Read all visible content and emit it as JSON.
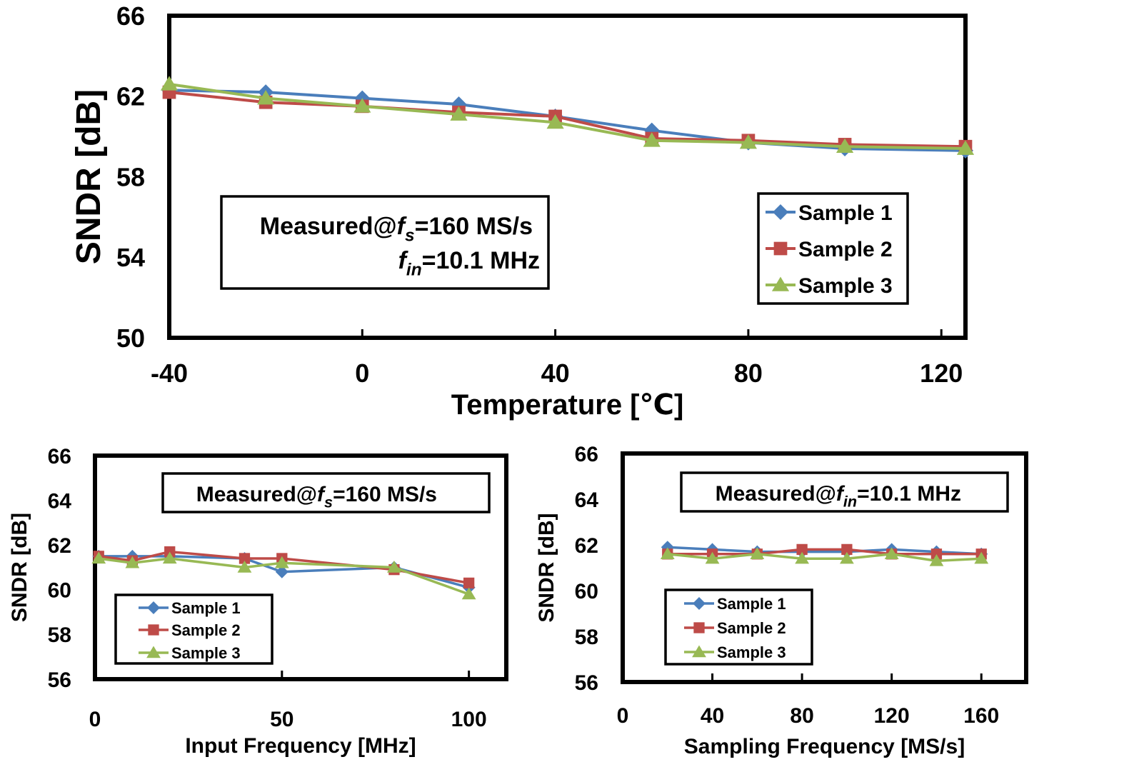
{
  "colors": {
    "sample1": "#4A7EBB",
    "sample2": "#BE4B48",
    "sample3": "#98B954"
  },
  "chart_data": [
    {
      "type": "line",
      "xlabel": "Temperature [℃]",
      "ylabel": "SNDR [dB]",
      "xlim": [
        -40,
        125
      ],
      "ylim": [
        50,
        66
      ],
      "xticks": [
        "-40",
        "0",
        "40",
        "80",
        "120"
      ],
      "yticks": [
        "50",
        "54",
        "58",
        "62",
        "66"
      ],
      "annotation": {
        "prefix": "Measured@",
        "line1_var": "f",
        "line1_sub": "s",
        "line1_rest": "=160 MS/s",
        "line2_var": "f",
        "line2_sub": "in",
        "line2_rest": "=10.1 MHz"
      },
      "legend_position": "bottom-right",
      "x": [
        -40,
        -20,
        0,
        20,
        40,
        60,
        80,
        100,
        125
      ],
      "series": [
        {
          "name": "Sample 1",
          "values": [
            62.3,
            62.2,
            61.9,
            61.6,
            61.0,
            60.3,
            59.7,
            59.4,
            59.3
          ]
        },
        {
          "name": "Sample 2",
          "values": [
            62.2,
            61.7,
            61.5,
            61.2,
            61.0,
            59.9,
            59.8,
            59.6,
            59.5
          ]
        },
        {
          "name": "Sample 3",
          "values": [
            62.6,
            61.9,
            61.5,
            61.1,
            60.7,
            59.8,
            59.7,
            59.5,
            59.4
          ]
        }
      ]
    },
    {
      "type": "line",
      "xlabel": "Input Frequency [MHz]",
      "ylabel": "SNDR [dB]",
      "xlim": [
        0,
        110
      ],
      "ylim": [
        56,
        66
      ],
      "xticks": [
        "0",
        "50",
        "100"
      ],
      "yticks": [
        "56",
        "58",
        "60",
        "62",
        "64",
        "66"
      ],
      "annotation": {
        "prefix": "Measured@",
        "line1_var": "f",
        "line1_sub": "s",
        "line1_rest": "=160 MS/s"
      },
      "legend_position": "bottom-left",
      "x": [
        1,
        10,
        20,
        40,
        50,
        80,
        100
      ],
      "series": [
        {
          "name": "Sample 1",
          "values": [
            61.5,
            61.5,
            61.5,
            61.4,
            60.8,
            61.0,
            60.1
          ]
        },
        {
          "name": "Sample 2",
          "values": [
            61.5,
            61.3,
            61.7,
            61.4,
            61.4,
            60.9,
            60.3
          ]
        },
        {
          "name": "Sample 3",
          "values": [
            61.4,
            61.2,
            61.4,
            61.0,
            61.2,
            61.0,
            59.8
          ]
        }
      ]
    },
    {
      "type": "line",
      "xlabel": "Sampling Frequency [MS/s]",
      "ylabel": "SNDR [dB]",
      "xlim": [
        0,
        180
      ],
      "ylim": [
        56,
        66
      ],
      "xticks": [
        "0",
        "40",
        "80",
        "120",
        "160"
      ],
      "yticks": [
        "56",
        "58",
        "60",
        "62",
        "64",
        "66"
      ],
      "annotation": {
        "prefix": "Measured@",
        "line1_var": "f",
        "line1_sub": "in",
        "line1_rest": "=10.1 MHz"
      },
      "legend_position": "bottom-left",
      "x": [
        20,
        40,
        60,
        80,
        100,
        120,
        140,
        160
      ],
      "series": [
        {
          "name": "Sample 1",
          "values": [
            61.9,
            61.8,
            61.7,
            61.7,
            61.7,
            61.8,
            61.7,
            61.6
          ]
        },
        {
          "name": "Sample 2",
          "values": [
            61.6,
            61.6,
            61.6,
            61.8,
            61.8,
            61.6,
            61.6,
            61.6
          ]
        },
        {
          "name": "Sample 3",
          "values": [
            61.6,
            61.4,
            61.6,
            61.4,
            61.4,
            61.6,
            61.3,
            61.4
          ]
        }
      ]
    }
  ]
}
